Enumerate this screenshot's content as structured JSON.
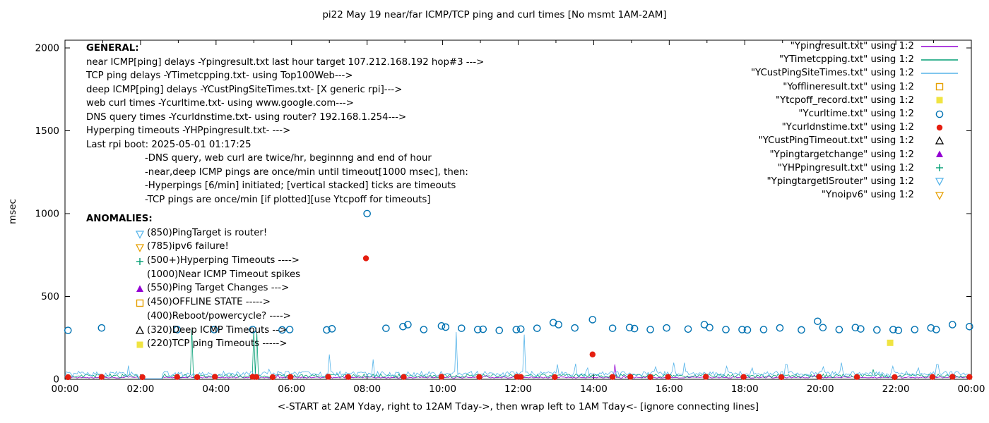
{
  "title": "pi22 May 19  near/far ICMP/TCP ping and curl times [No msmt 1AM-2AM]",
  "ylabel": "msec",
  "xlabel": "<-START at 2AM Yday, right to 12AM Tday->, then wrap left to 1AM Tday<- [ignore connecting lines]",
  "general": {
    "heading": "GENERAL:",
    "lines": [
      "near ICMP[ping] delays -Ypingresult.txt last hour target 107.212.168.192 hop#3 --->",
      "TCP ping delays -YTimetcpping.txt- using Top100Web--->",
      "deep ICMP[ping] delays -YCustPingSiteTimes.txt- [X generic rpi]--->",
      "web curl times -Ycurltime.txt- using www.google.com--->",
      "DNS query times -Ycurldnstime.txt- using router? 192.168.1.254--->",
      "Hyperping timeouts -YHPpingresult.txt- --->",
      "Last rpi boot: 2025-05-01 01:17:25"
    ],
    "notes": [
      "-DNS query, web curl are twice/hr, beginnng and end of hour",
      "-near,deep ICMP pings are once/min until timeout[1000 msec], then:",
      "-Hyperpings [6/min] initiated; [vertical stacked] ticks are timeouts",
      "-TCP pings are once/min [if plotted][use Ytcpoff for timeouts]"
    ]
  },
  "anomalies": {
    "heading": "ANOMALIES:",
    "items": [
      {
        "icon": "triangle-down-open",
        "color": "#56b4e9",
        "label": "(850)PingTarget is router!"
      },
      {
        "icon": "triangle-down-open",
        "color": "#e69f00",
        "label": "(785)ipv6 failure!"
      },
      {
        "icon": "plus",
        "color": "#009e73",
        "label": "(500+)Hyperping Timeouts ---->"
      },
      {
        "icon": "none",
        "color": "",
        "label": "(1000)Near ICMP Timeout spikes"
      },
      {
        "icon": "triangle-up-filled",
        "color": "#9400d3",
        "label": "(550)Ping Target Changes --->"
      },
      {
        "icon": "square-open",
        "color": "#e69f00",
        "label": "(450)OFFLINE STATE ----->"
      },
      {
        "icon": "none",
        "color": "",
        "label": "(400)Reboot/powercycle? ---->"
      },
      {
        "icon": "triangle-up-open",
        "color": "#000000",
        "label": "(320)Deep ICMP Timeouts -->"
      },
      {
        "icon": "square-filled",
        "color": "#f0e442",
        "label": "(220)TCP ping Timeouts ----->"
      }
    ]
  },
  "legend": [
    {
      "label": "\"Ypingresult.txt\" using 1:2",
      "sample": "line",
      "color": "#9400d3"
    },
    {
      "label": "\"YTimetcpping.txt\" using 1:2",
      "sample": "line",
      "color": "#009e73"
    },
    {
      "label": "\"YCustPingSiteTimes.txt\" using 1:2",
      "sample": "line",
      "color": "#56b4e9"
    },
    {
      "label": "\"Yofflineresult.txt\" using 1:2",
      "sample": "square-open",
      "color": "#e69f00"
    },
    {
      "label": "\"Ytcpoff_record.txt\" using 1:2",
      "sample": "square-filled",
      "color": "#f0e442"
    },
    {
      "label": "\"Ycurltime.txt\" using 1:2",
      "sample": "circle-open",
      "color": "#0072b2"
    },
    {
      "label": "\"Ycurldnstime.txt\" using 1:2",
      "sample": "circle-filled",
      "color": "#e51e10"
    },
    {
      "label": "\"YCustPingTimeout.txt\" using 1:2",
      "sample": "triangle-up-open",
      "color": "#000000"
    },
    {
      "label": "\"Ypingtargetchange\" using 1:2",
      "sample": "triangle-up-filled",
      "color": "#9400d3"
    },
    {
      "label": "\"YHPpingresult.txt\" using 1:2",
      "sample": "plus",
      "color": "#009e73"
    },
    {
      "label": "\"YpingtargetISrouter\" using 1:2",
      "sample": "triangle-down-open",
      "color": "#56b4e9"
    },
    {
      "label": "\"Ynoipv6\" using 1:2",
      "sample": "triangle-down-open",
      "color": "#e69f00"
    }
  ],
  "chart_data": {
    "type": "line+scatter",
    "title": "pi22 May 19  near/far ICMP/TCP ping and curl times [No msmt 1AM-2AM]",
    "xlabel_units": "time of day (hours)",
    "ylabel": "msec",
    "grid": false,
    "legend_position": "top-right",
    "x_axis": {
      "min": 0,
      "max": 24,
      "major_step": 2,
      "minor_step": 1,
      "tick_labels": [
        "00:00",
        "02:00",
        "04:00",
        "06:00",
        "08:00",
        "10:00",
        "12:00",
        "14:00",
        "16:00",
        "18:00",
        "20:00",
        "22:00",
        "00:00"
      ]
    },
    "y_axis": {
      "min": 0,
      "max": 2000,
      "ticks": [
        0,
        500,
        1000,
        1500,
        2000
      ]
    },
    "no_measurement_gap_hours": [
      1.95,
      2.6
    ],
    "lines": [
      {
        "name": "Ypingresult.txt",
        "color": "#9400d3",
        "baseline": 10,
        "noise": 8,
        "seed": 11,
        "flat": [
          1.95,
          2.6
        ],
        "spikes": [
          [
            14.55,
            90
          ]
        ]
      },
      {
        "name": "YTimetcpping.txt",
        "color": "#009e73",
        "baseline": 18,
        "noise": 22,
        "seed": 23,
        "flat": [
          1.95,
          2.6
        ],
        "spikes": [
          [
            3.35,
            300
          ],
          [
            5.0,
            300
          ],
          [
            5.07,
            285
          ]
        ]
      },
      {
        "name": "YCustPingSiteTimes.txt",
        "color": "#56b4e9",
        "baseline": 28,
        "noise": 32,
        "seed": 37,
        "flat": [
          1.95,
          2.6
        ],
        "spikes": [
          [
            7.0,
            150
          ],
          [
            8.15,
            120
          ],
          [
            10.35,
            285
          ],
          [
            12.15,
            270
          ],
          [
            13.05,
            90
          ],
          [
            16.4,
            100
          ],
          [
            19.1,
            90
          ],
          [
            23.1,
            90
          ]
        ]
      }
    ],
    "points": [
      {
        "name": "Ycurltime.txt",
        "marker": "circle-open",
        "color": "#0072b2",
        "data": [
          [
            0.08,
            295
          ],
          [
            0.97,
            310
          ],
          [
            2.97,
            300
          ],
          [
            3.95,
            300
          ],
          [
            4.97,
            300
          ],
          [
            5.75,
            298
          ],
          [
            5.95,
            300
          ],
          [
            6.93,
            298
          ],
          [
            7.07,
            305
          ],
          [
            8.0,
            1000
          ],
          [
            8.5,
            308
          ],
          [
            8.95,
            318
          ],
          [
            9.08,
            330
          ],
          [
            9.5,
            300
          ],
          [
            9.97,
            322
          ],
          [
            10.08,
            315
          ],
          [
            10.5,
            308
          ],
          [
            10.93,
            300
          ],
          [
            11.07,
            302
          ],
          [
            11.5,
            295
          ],
          [
            11.95,
            300
          ],
          [
            12.07,
            303
          ],
          [
            12.5,
            308
          ],
          [
            12.93,
            342
          ],
          [
            13.07,
            330
          ],
          [
            13.5,
            310
          ],
          [
            13.97,
            360
          ],
          [
            14.5,
            308
          ],
          [
            14.95,
            312
          ],
          [
            15.08,
            306
          ],
          [
            15.5,
            300
          ],
          [
            15.93,
            310
          ],
          [
            16.5,
            303
          ],
          [
            16.93,
            330
          ],
          [
            17.07,
            312
          ],
          [
            17.5,
            300
          ],
          [
            17.93,
            300
          ],
          [
            18.07,
            298
          ],
          [
            18.5,
            300
          ],
          [
            18.93,
            310
          ],
          [
            19.5,
            298
          ],
          [
            19.93,
            350
          ],
          [
            20.07,
            312
          ],
          [
            20.5,
            300
          ],
          [
            20.93,
            312
          ],
          [
            21.07,
            304
          ],
          [
            21.5,
            298
          ],
          [
            21.93,
            300
          ],
          [
            22.07,
            295
          ],
          [
            22.5,
            300
          ],
          [
            22.93,
            310
          ],
          [
            23.07,
            300
          ],
          [
            23.5,
            330
          ],
          [
            23.95,
            318
          ]
        ]
      },
      {
        "name": "Ycurldnstime.txt",
        "marker": "circle-filled",
        "color": "#e51e10",
        "data": [
          [
            0.08,
            13
          ],
          [
            0.97,
            14
          ],
          [
            2.05,
            13
          ],
          [
            2.97,
            14
          ],
          [
            3.5,
            13
          ],
          [
            3.97,
            15
          ],
          [
            4.97,
            15
          ],
          [
            5.07,
            14
          ],
          [
            5.5,
            13
          ],
          [
            5.97,
            14
          ],
          [
            6.97,
            15
          ],
          [
            7.5,
            14
          ],
          [
            7.97,
            730
          ],
          [
            8.97,
            14
          ],
          [
            9.97,
            15
          ],
          [
            10.97,
            14
          ],
          [
            11.97,
            15
          ],
          [
            12.07,
            14
          ],
          [
            12.97,
            13
          ],
          [
            13.97,
            150
          ],
          [
            14.5,
            14
          ],
          [
            14.97,
            15
          ],
          [
            15.5,
            13
          ],
          [
            15.97,
            14
          ],
          [
            16.97,
            15
          ],
          [
            17.97,
            14
          ],
          [
            18.97,
            13
          ],
          [
            19.97,
            15
          ],
          [
            20.97,
            14
          ],
          [
            21.97,
            13
          ],
          [
            22.97,
            14
          ],
          [
            23.5,
            15
          ],
          [
            23.95,
            14
          ]
        ]
      },
      {
        "name": "Ytcpoff_record.txt",
        "marker": "square-filled",
        "color": "#f0e442",
        "data": [
          [
            21.85,
            220
          ]
        ]
      }
    ]
  }
}
